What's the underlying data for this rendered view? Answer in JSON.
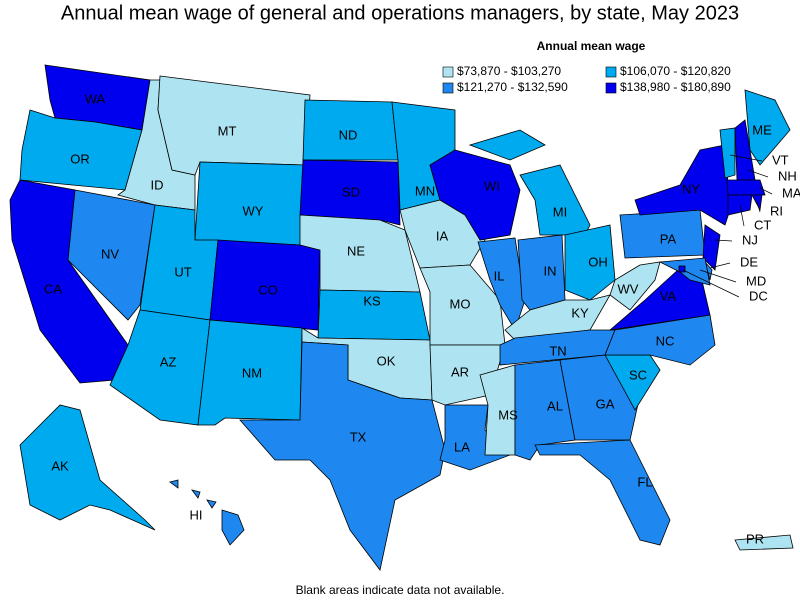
{
  "title": "Annual mean wage of general and operations managers, by state, May 2023",
  "legend": {
    "title": "Annual mean wage",
    "items": [
      {
        "label": "$73,870 - $103,270",
        "color": "#aee4f2"
      },
      {
        "label": "$106,070 - $120,820",
        "color": "#00aaee"
      },
      {
        "label": "$121,270 - $132,590",
        "color": "#1e88f0"
      },
      {
        "label": "$138,980 - $180,890",
        "color": "#0000ee"
      }
    ]
  },
  "states": [
    {
      "abbr": "WA",
      "class": 3
    },
    {
      "abbr": "OR",
      "class": 1
    },
    {
      "abbr": "CA",
      "class": 3
    },
    {
      "abbr": "NV",
      "class": 2
    },
    {
      "abbr": "ID",
      "class": 0
    },
    {
      "abbr": "MT",
      "class": 0
    },
    {
      "abbr": "WY",
      "class": 1
    },
    {
      "abbr": "UT",
      "class": 1
    },
    {
      "abbr": "CO",
      "class": 3
    },
    {
      "abbr": "AZ",
      "class": 1
    },
    {
      "abbr": "NM",
      "class": 1
    },
    {
      "abbr": "ND",
      "class": 1
    },
    {
      "abbr": "SD",
      "class": 3
    },
    {
      "abbr": "NE",
      "class": 0
    },
    {
      "abbr": "KS",
      "class": 1
    },
    {
      "abbr": "OK",
      "class": 0
    },
    {
      "abbr": "TX",
      "class": 2
    },
    {
      "abbr": "MN",
      "class": 1
    },
    {
      "abbr": "IA",
      "class": 0
    },
    {
      "abbr": "MO",
      "class": 0
    },
    {
      "abbr": "AR",
      "class": 0
    },
    {
      "abbr": "LA",
      "class": 2
    },
    {
      "abbr": "WI",
      "class": 3
    },
    {
      "abbr": "IL",
      "class": 2
    },
    {
      "abbr": "MI",
      "class": 1
    },
    {
      "abbr": "IN",
      "class": 2
    },
    {
      "abbr": "OH",
      "class": 1
    },
    {
      "abbr": "KY",
      "class": 0
    },
    {
      "abbr": "TN",
      "class": 2
    },
    {
      "abbr": "MS",
      "class": 0
    },
    {
      "abbr": "AL",
      "class": 2
    },
    {
      "abbr": "GA",
      "class": 2
    },
    {
      "abbr": "FL",
      "class": 2
    },
    {
      "abbr": "SC",
      "class": 1
    },
    {
      "abbr": "NC",
      "class": 2
    },
    {
      "abbr": "VA",
      "class": 3
    },
    {
      "abbr": "WV",
      "class": 0
    },
    {
      "abbr": "PA",
      "class": 2
    },
    {
      "abbr": "NY",
      "class": 3
    },
    {
      "abbr": "NJ",
      "class": 3
    },
    {
      "abbr": "DE",
      "class": 2
    },
    {
      "abbr": "MD",
      "class": 2
    },
    {
      "abbr": "DC",
      "class": 3
    },
    {
      "abbr": "VT",
      "class": 1
    },
    {
      "abbr": "NH",
      "class": 3
    },
    {
      "abbr": "ME",
      "class": 1
    },
    {
      "abbr": "MA",
      "class": 3
    },
    {
      "abbr": "RI",
      "class": 3
    },
    {
      "abbr": "CT",
      "class": 3
    },
    {
      "abbr": "AK",
      "class": 1
    },
    {
      "abbr": "HI",
      "class": 2
    },
    {
      "abbr": "PR",
      "class": 0
    }
  ],
  "footnote": "Blank areas indicate data not available."
}
